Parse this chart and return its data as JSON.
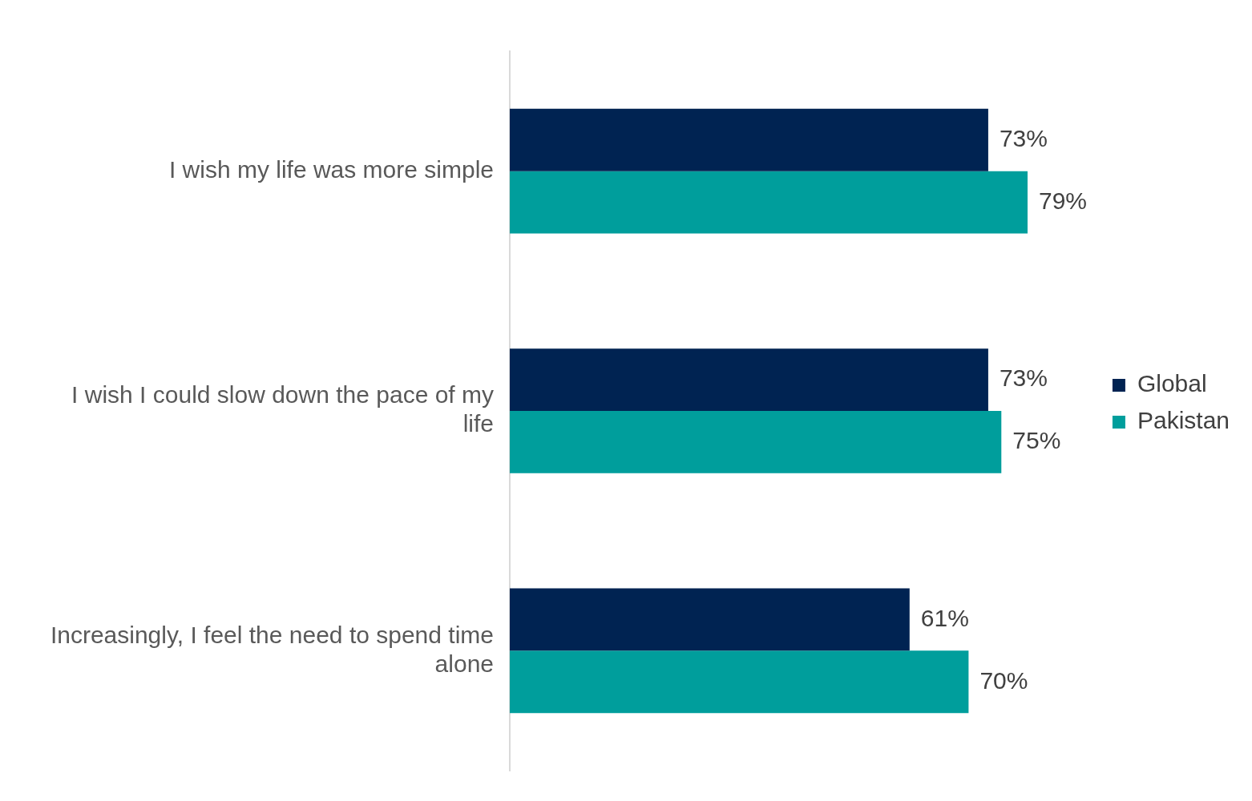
{
  "chart_data": {
    "type": "bar",
    "orientation": "horizontal",
    "categories": [
      "I wish my life was more simple",
      "I wish I could slow down the pace of my life",
      "Increasingly, I feel the need to spend time alone"
    ],
    "series": [
      {
        "name": "Global",
        "color": "#002352",
        "values": [
          73,
          73,
          61
        ],
        "value_labels": [
          "73%",
          "73%",
          "61%"
        ]
      },
      {
        "name": "Pakistan",
        "color": "#009e9c",
        "values": [
          79,
          75,
          70
        ],
        "value_labels": [
          "79%",
          "75%",
          "70%"
        ]
      }
    ],
    "tick_labels": "y",
    "grid": false,
    "legend": "right"
  }
}
